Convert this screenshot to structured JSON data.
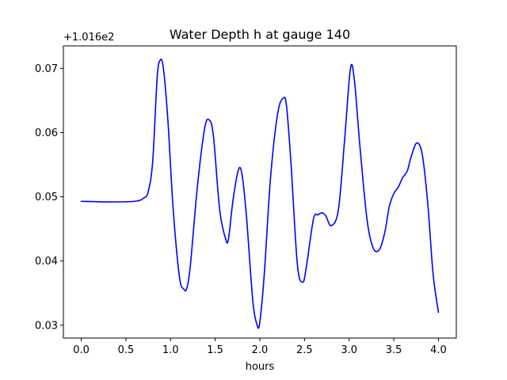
{
  "chart_data": {
    "type": "line",
    "title": "Water Depth h at gauge 140",
    "xlabel": "hours",
    "ylabel": "",
    "y_offset_text": "+1.016e2",
    "y_offset_value": 101.6,
    "xlim": [
      -0.2,
      4.2
    ],
    "ylim": [
      0.028,
      0.0735
    ],
    "x_ticks": [
      0.0,
      0.5,
      1.0,
      1.5,
      2.0,
      2.5,
      3.0,
      3.5,
      4.0
    ],
    "x_tick_labels": [
      "0.0",
      "0.5",
      "1.0",
      "1.5",
      "2.0",
      "2.5",
      "3.0",
      "3.5",
      "4.0"
    ],
    "y_ticks": [
      0.03,
      0.04,
      0.05,
      0.06,
      0.07
    ],
    "y_tick_labels": [
      "0.03",
      "0.04",
      "0.05",
      "0.06",
      "0.07"
    ],
    "grid": false,
    "legend": "none",
    "series": [
      {
        "color": "#0000ff",
        "x": [
          0.0,
          0.3,
          0.6,
          0.7,
          0.75,
          0.8,
          0.85,
          0.885,
          0.92,
          0.97,
          1.03,
          1.1,
          1.15,
          1.18,
          1.22,
          1.3,
          1.38,
          1.43,
          1.48,
          1.55,
          1.62,
          1.65,
          1.7,
          1.76,
          1.8,
          1.85,
          1.92,
          1.97,
          2.0,
          2.05,
          2.12,
          2.2,
          2.265,
          2.3,
          2.35,
          2.42,
          2.48,
          2.52,
          2.6,
          2.65,
          2.7,
          2.74,
          2.8,
          2.88,
          2.95,
          3.015,
          3.06,
          3.12,
          3.2,
          3.27,
          3.34,
          3.4,
          3.45,
          3.5,
          3.55,
          3.6,
          3.65,
          3.7,
          3.76,
          3.82,
          3.88,
          3.94,
          4.0
        ],
        "y": [
          0.0493,
          0.0492,
          0.0493,
          0.0498,
          0.0508,
          0.0555,
          0.0685,
          0.0713,
          0.07,
          0.062,
          0.048,
          0.0375,
          0.0356,
          0.0357,
          0.039,
          0.0515,
          0.0605,
          0.062,
          0.0595,
          0.048,
          0.0433,
          0.0436,
          0.0495,
          0.0542,
          0.0535,
          0.047,
          0.034,
          0.03,
          0.0305,
          0.038,
          0.053,
          0.063,
          0.0654,
          0.064,
          0.055,
          0.0395,
          0.0367,
          0.039,
          0.0465,
          0.0472,
          0.0475,
          0.047,
          0.0455,
          0.048,
          0.059,
          0.07,
          0.068,
          0.058,
          0.0465,
          0.042,
          0.0418,
          0.0445,
          0.0485,
          0.0505,
          0.0515,
          0.053,
          0.054,
          0.0565,
          0.0584,
          0.0565,
          0.049,
          0.038,
          0.032
        ]
      }
    ]
  }
}
